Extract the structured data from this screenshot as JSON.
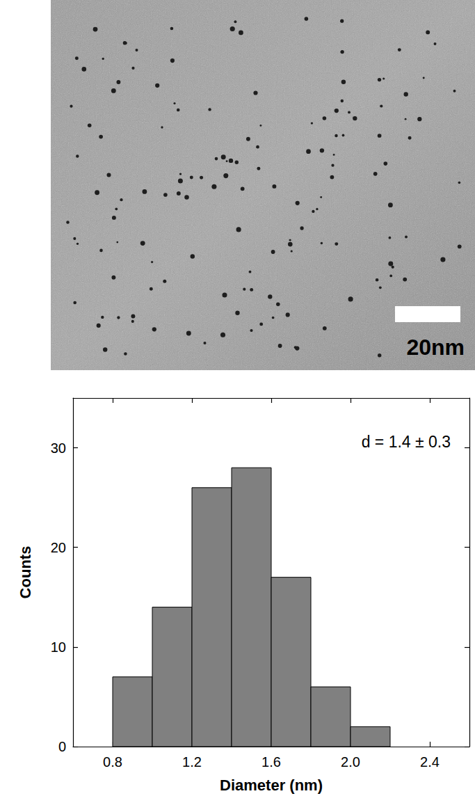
{
  "image": {
    "scale_bar": "20nm"
  },
  "chart_data": {
    "type": "histogram",
    "bins": [
      0.8,
      1.0,
      1.2,
      1.4,
      1.6,
      1.8,
      2.0,
      2.2
    ],
    "values": [
      7,
      14,
      26,
      28,
      17,
      6,
      2
    ],
    "color": "#808080",
    "xlabel": "Diameter (nm)",
    "ylabel": "Counts",
    "annotations": [
      "d = 1.4 ± 0.3"
    ],
    "xlim": [
      0.6,
      2.6
    ],
    "xticks": [
      0.8,
      1.2,
      1.6,
      {
        "value": 2,
        "label": "2.0"
      },
      2.4
    ],
    "ylim": [
      0,
      35
    ],
    "yticks": [
      0,
      10,
      20,
      30
    ],
    "grid": false
  }
}
